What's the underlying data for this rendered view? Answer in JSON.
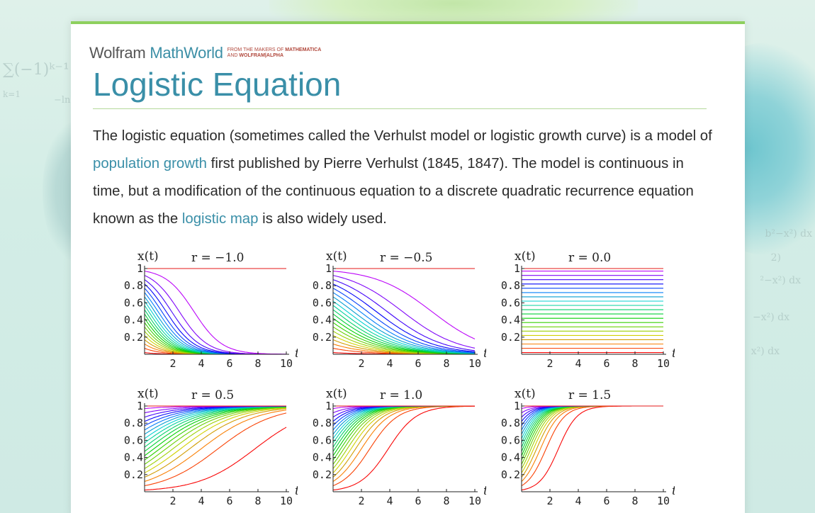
{
  "background": {
    "left_formula_top": "∑(−1)ᵏ⁻¹",
    "left_formula_bottom": "k=1",
    "left_formula_extra": "−ln",
    "right_formulas": [
      "b²−x²) dx",
      "2)",
      "²−x²) dx",
      "−x²) dx",
      "x²) dx"
    ]
  },
  "brand": {
    "wolfram": "Wolfram",
    "mathworld": "MathWorld",
    "tag_line1_prefix": "FROM THE MAKERS OF ",
    "tag_line1_bold": "MATHEMATICA",
    "tag_line2_prefix": "AND ",
    "tag_line2_bold": "WOLFRAM|ALPHA"
  },
  "page": {
    "title": "Logistic Equation",
    "paragraph": {
      "seg1": "The logistic equation (sometimes called the Verhulst model or logistic growth curve) is a model of ",
      "link1": "population growth",
      "seg2": " first published by Pierre Verhulst (1845, 1847). The model is continuous in time, but a modification of the continuous equation to a discrete quadratic recurrence equation known as the ",
      "link2": "logistic map",
      "seg3": " is also widely used."
    }
  },
  "chart_data": [
    {
      "type": "line",
      "ylabel": "x(t)",
      "xlabel": "t",
      "title": "r = −1.0",
      "r": -1.0,
      "xlim": [
        0,
        10
      ],
      "ylim": [
        0,
        1
      ],
      "xticks": [
        "2",
        "4",
        "6",
        "8",
        "10"
      ],
      "yticks": [
        "1",
        "0.8",
        "0.6",
        "0.4",
        "0.2"
      ],
      "initial_values": [
        0.02,
        0.07,
        0.12,
        0.17,
        0.22,
        0.27,
        0.32,
        0.37,
        0.42,
        0.47,
        0.52,
        0.57,
        0.62,
        0.67,
        0.72,
        0.77,
        0.82,
        0.87,
        0.92,
        0.97,
        1.0
      ]
    },
    {
      "type": "line",
      "ylabel": "x(t)",
      "xlabel": "t",
      "title": "r = −0.5",
      "r": -0.5,
      "xlim": [
        0,
        10
      ],
      "ylim": [
        0,
        1
      ],
      "xticks": [
        "2",
        "4",
        "6",
        "8",
        "10"
      ],
      "yticks": [
        "1",
        "0.8",
        "0.6",
        "0.4",
        "0.2"
      ],
      "initial_values": [
        0.02,
        0.07,
        0.12,
        0.17,
        0.22,
        0.27,
        0.32,
        0.37,
        0.42,
        0.47,
        0.52,
        0.57,
        0.62,
        0.67,
        0.72,
        0.77,
        0.82,
        0.87,
        0.92,
        0.97,
        1.0
      ]
    },
    {
      "type": "line",
      "ylabel": "x(t)",
      "xlabel": "t",
      "title": "r = 0.0",
      "r": 0.0,
      "xlim": [
        0,
        10
      ],
      "ylim": [
        0,
        1
      ],
      "xticks": [
        "2",
        "4",
        "6",
        "8",
        "10"
      ],
      "yticks": [
        "1",
        "0.8",
        "0.6",
        "0.4",
        "0.2"
      ],
      "initial_values": [
        0.02,
        0.07,
        0.12,
        0.17,
        0.22,
        0.27,
        0.32,
        0.37,
        0.42,
        0.47,
        0.52,
        0.57,
        0.62,
        0.67,
        0.72,
        0.77,
        0.82,
        0.87,
        0.92,
        0.97,
        1.0
      ]
    },
    {
      "type": "line",
      "ylabel": "x(t)",
      "xlabel": "t",
      "title": "r = 0.5",
      "r": 0.5,
      "xlim": [
        0,
        10
      ],
      "ylim": [
        0,
        1
      ],
      "xticks": [
        "2",
        "4",
        "6",
        "8",
        "10"
      ],
      "yticks": [
        "1",
        "0.8",
        "0.6",
        "0.4",
        "0.2"
      ],
      "initial_values": [
        0.02,
        0.07,
        0.12,
        0.17,
        0.22,
        0.27,
        0.32,
        0.37,
        0.42,
        0.47,
        0.52,
        0.57,
        0.62,
        0.67,
        0.72,
        0.77,
        0.82,
        0.87,
        0.92,
        0.97,
        1.0
      ]
    },
    {
      "type": "line",
      "ylabel": "x(t)",
      "xlabel": "t",
      "title": "r = 1.0",
      "r": 1.0,
      "xlim": [
        0,
        10
      ],
      "ylim": [
        0,
        1
      ],
      "xticks": [
        "2",
        "4",
        "6",
        "8",
        "10"
      ],
      "yticks": [
        "1",
        "0.8",
        "0.6",
        "0.4",
        "0.2"
      ],
      "initial_values": [
        0.02,
        0.07,
        0.12,
        0.17,
        0.22,
        0.27,
        0.32,
        0.37,
        0.42,
        0.47,
        0.52,
        0.57,
        0.62,
        0.67,
        0.72,
        0.77,
        0.82,
        0.87,
        0.92,
        0.97,
        1.0
      ]
    },
    {
      "type": "line",
      "ylabel": "x(t)",
      "xlabel": "t",
      "title": "r = 1.5",
      "r": 1.5,
      "xlim": [
        0,
        10
      ],
      "ylim": [
        0,
        1
      ],
      "xticks": [
        "2",
        "4",
        "6",
        "8",
        "10"
      ],
      "yticks": [
        "1",
        "0.8",
        "0.6",
        "0.4",
        "0.2"
      ],
      "initial_values": [
        0.02,
        0.07,
        0.12,
        0.17,
        0.22,
        0.27,
        0.32,
        0.37,
        0.42,
        0.47,
        0.52,
        0.57,
        0.62,
        0.67,
        0.72,
        0.77,
        0.82,
        0.87,
        0.92,
        0.97,
        1.0
      ]
    }
  ]
}
